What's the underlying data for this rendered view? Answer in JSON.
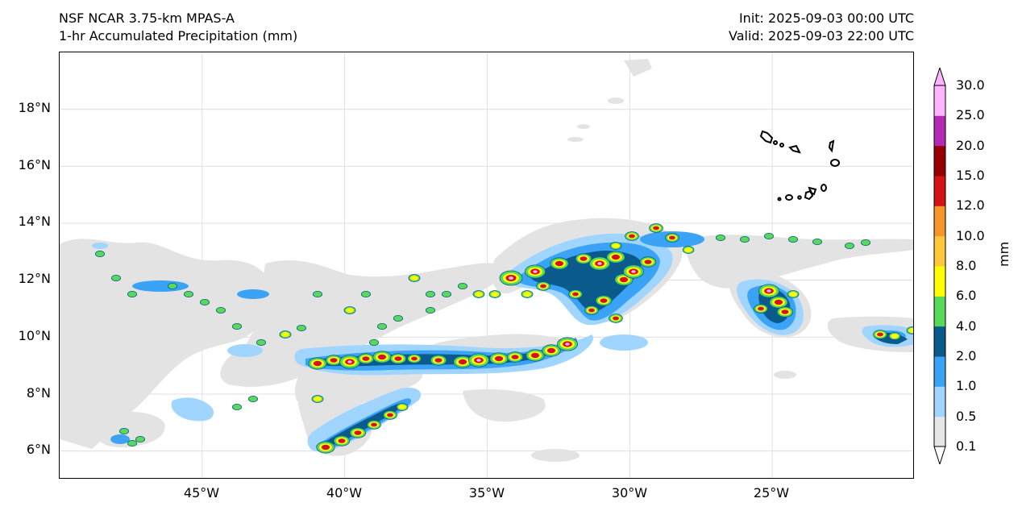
{
  "header": {
    "model": "NSF NCAR 3.75-km MPAS-A",
    "field": "1-hr Accumulated Precipitation (mm)",
    "init": "Init: 2025-09-03 00:00 UTC",
    "valid": "Valid: 2025-09-03 22:00 UTC"
  },
  "map": {
    "lat_labels": [
      "18°N",
      "16°N",
      "14°N",
      "12°N",
      "10°N",
      "8°N",
      "6°N"
    ],
    "lon_labels": [
      "45°W",
      "40°W",
      "35°W",
      "30°W",
      "25°W"
    ],
    "extent": {
      "lon_min": -50,
      "lon_max": -20,
      "lat_min": 5,
      "lat_max": 20
    },
    "gridlines": true,
    "features": [
      "Cape Verde islands outline"
    ]
  },
  "colorbar": {
    "levels": [
      "0.1",
      "0.5",
      "1.0",
      "2.0",
      "4.0",
      "6.0",
      "8.0",
      "10.0",
      "12.0",
      "15.0",
      "20.0",
      "25.0",
      "30.0"
    ],
    "colors": [
      "#e6e6e6",
      "#9fd5ff",
      "#3aa3f5",
      "#0a5a8c",
      "#59d95a",
      "#ffff00",
      "#ffc83c",
      "#f5962d",
      "#d21414",
      "#960000",
      "#b42ab4",
      "#ffb4ff"
    ],
    "units": "mm"
  }
}
